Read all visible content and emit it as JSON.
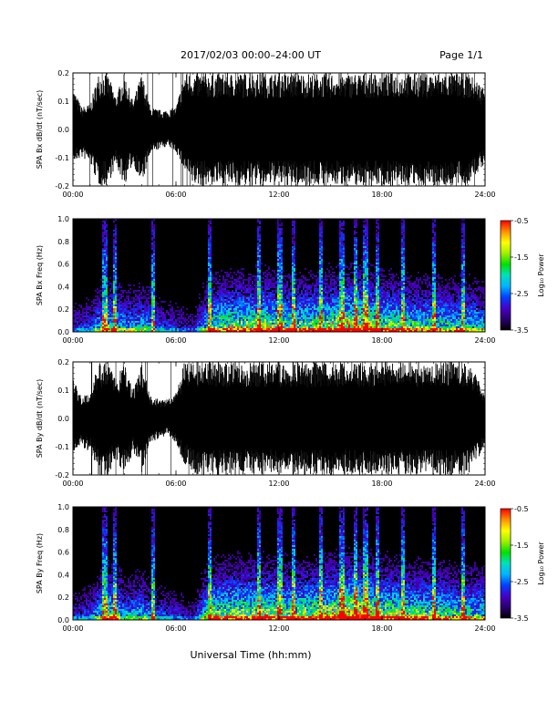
{
  "header": {
    "title": "2017/02/03  00:00–24:00 UT",
    "page": "Page 1/1"
  },
  "footer": {
    "xlabel": "Universal Time (hh:mm)"
  },
  "colors": {
    "background": "#ffffff",
    "trace": "#000000",
    "colorbar": [
      "#000000",
      "#2a0070",
      "#4a00c8",
      "#0040ff",
      "#00b4ff",
      "#00e0c0",
      "#00e000",
      "#a0f000",
      "#ffff00",
      "#ff9000",
      "#ff0000"
    ]
  },
  "chart_data": [
    {
      "type": "line",
      "ylabel": "SPA Bx dB/dt (nT/sec)",
      "xlim": [
        0,
        24
      ],
      "ylim": [
        -0.2,
        0.2
      ],
      "x_ticks": [
        "00:00",
        "06:00",
        "12:00",
        "18:00",
        "24:00"
      ],
      "y_ticks": [
        "-0.2",
        "-0.1",
        "0.0",
        "0.1",
        "0.2"
      ],
      "y_tick_values": [
        -0.2,
        -0.1,
        0.0,
        0.1,
        0.2
      ],
      "envelope": {
        "x": [
          0,
          0.5,
          1,
          1.5,
          2,
          2.5,
          3,
          3.5,
          4,
          4.5,
          5,
          5.5,
          6,
          6.5,
          7,
          7.5,
          8,
          8.5,
          9,
          10,
          11,
          12,
          13,
          14,
          15,
          16,
          17,
          18,
          19,
          20,
          21,
          22,
          23,
          24
        ],
        "upper": [
          0.15,
          0.08,
          0.09,
          0.2,
          0.2,
          0.12,
          0.2,
          0.1,
          0.2,
          0.08,
          0.07,
          0.07,
          0.08,
          0.2,
          0.2,
          0.2,
          0.2,
          0.2,
          0.2,
          0.2,
          0.2,
          0.2,
          0.2,
          0.2,
          0.2,
          0.2,
          0.2,
          0.2,
          0.2,
          0.2,
          0.2,
          0.2,
          0.2,
          0.15
        ],
        "lower": [
          -0.12,
          -0.1,
          -0.12,
          -0.2,
          -0.2,
          -0.13,
          -0.2,
          -0.12,
          -0.2,
          -0.09,
          -0.07,
          -0.06,
          -0.08,
          -0.15,
          -0.2,
          -0.2,
          -0.2,
          -0.2,
          -0.2,
          -0.2,
          -0.2,
          -0.2,
          -0.2,
          -0.2,
          -0.2,
          -0.2,
          -0.2,
          -0.2,
          -0.2,
          -0.2,
          -0.2,
          -0.2,
          -0.2,
          -0.12
        ]
      }
    },
    {
      "type": "heatmap",
      "ylabel": "SPA Bx Freq (Hz)",
      "xlim": [
        0,
        24
      ],
      "ylim": [
        0,
        1.0
      ],
      "x_ticks": [
        "00:00",
        "06:00",
        "12:00",
        "18:00",
        "24:00"
      ],
      "y_ticks": [
        "0.0",
        "0.2",
        "0.4",
        "0.6",
        "0.8",
        "1.0"
      ],
      "y_tick_values": [
        0,
        0.2,
        0.4,
        0.6,
        0.8,
        1.0
      ],
      "colorbar": {
        "label": "Log₁₀ Power",
        "range": [
          -3.5,
          -0.5
        ],
        "ticks": [
          "-0.5",
          "-1.5",
          "-2.5",
          "-3.5"
        ],
        "tick_values": [
          -0.5,
          -1.5,
          -2.5,
          -3.5
        ]
      },
      "activity": {
        "x": [
          0,
          1,
          2,
          3,
          4,
          5,
          6,
          7,
          8,
          9,
          10,
          11,
          12,
          13,
          14,
          15,
          16,
          17,
          18,
          19,
          20,
          21,
          22,
          23,
          24
        ],
        "level": [
          0.2,
          0.25,
          0.5,
          0.35,
          0.4,
          0.25,
          0.2,
          0.15,
          0.55,
          0.6,
          0.6,
          0.65,
          0.55,
          0.55,
          0.6,
          0.65,
          0.75,
          0.7,
          0.6,
          0.55,
          0.5,
          0.5,
          0.45,
          0.45,
          0.4
        ]
      },
      "bursts_hour": [
        1.8,
        2.4,
        4.6,
        7.9,
        10.8,
        12.0,
        12.8,
        14.4,
        15.6,
        16.4,
        17.0,
        17.7,
        19.2,
        21.0,
        22.7
      ]
    },
    {
      "type": "line",
      "ylabel": "SPA By dB/dt (nT/sec)",
      "xlim": [
        0,
        24
      ],
      "ylim": [
        -0.2,
        0.2
      ],
      "x_ticks": [
        "00:00",
        "06:00",
        "12:00",
        "18:00",
        "24:00"
      ],
      "y_ticks": [
        "-0.2",
        "-0.1",
        "0.0",
        "0.1",
        "0.2"
      ],
      "y_tick_values": [
        -0.2,
        -0.1,
        0.0,
        0.1,
        0.2
      ],
      "envelope": {
        "x": [
          0,
          0.5,
          1,
          1.5,
          2,
          2.5,
          3,
          3.5,
          4,
          4.5,
          5,
          5.5,
          6,
          6.5,
          7,
          7.5,
          8,
          8.5,
          9,
          10,
          11,
          12,
          13,
          14,
          15,
          16,
          17,
          18,
          19,
          20,
          21,
          22,
          23,
          24
        ],
        "upper": [
          0.15,
          0.08,
          0.09,
          0.2,
          0.2,
          0.14,
          0.2,
          0.1,
          0.2,
          0.08,
          0.07,
          0.07,
          0.09,
          0.2,
          0.2,
          0.2,
          0.2,
          0.2,
          0.2,
          0.2,
          0.2,
          0.2,
          0.2,
          0.2,
          0.2,
          0.2,
          0.2,
          0.2,
          0.2,
          0.2,
          0.2,
          0.2,
          0.2,
          0.1
        ],
        "lower": [
          -0.12,
          -0.1,
          -0.12,
          -0.2,
          -0.2,
          -0.15,
          -0.2,
          -0.12,
          -0.2,
          -0.09,
          -0.07,
          -0.06,
          -0.09,
          -0.16,
          -0.2,
          -0.2,
          -0.2,
          -0.2,
          -0.2,
          -0.2,
          -0.2,
          -0.2,
          -0.2,
          -0.2,
          -0.2,
          -0.2,
          -0.2,
          -0.2,
          -0.2,
          -0.2,
          -0.2,
          -0.2,
          -0.2,
          -0.1
        ]
      }
    },
    {
      "type": "heatmap",
      "ylabel": "SPA By Freq (Hz)",
      "xlim": [
        0,
        24
      ],
      "ylim": [
        0,
        1.0
      ],
      "x_ticks": [
        "00:00",
        "06:00",
        "12:00",
        "18:00",
        "24:00"
      ],
      "y_ticks": [
        "0.0",
        "0.2",
        "0.4",
        "0.6",
        "0.8",
        "1.0"
      ],
      "y_tick_values": [
        0,
        0.2,
        0.4,
        0.6,
        0.8,
        1.0
      ],
      "colorbar": {
        "label": "Log₁₀ Power",
        "range": [
          -3.5,
          -0.5
        ],
        "ticks": [
          "-0.5",
          "-1.5",
          "-2.5",
          "-3.5"
        ],
        "tick_values": [
          -0.5,
          -1.5,
          -2.5,
          -3.5
        ]
      },
      "activity": {
        "x": [
          0,
          1,
          2,
          3,
          4,
          5,
          6,
          7,
          8,
          9,
          10,
          11,
          12,
          13,
          14,
          15,
          16,
          17,
          18,
          19,
          20,
          21,
          22,
          23,
          24
        ],
        "level": [
          0.2,
          0.25,
          0.55,
          0.35,
          0.4,
          0.25,
          0.2,
          0.15,
          0.6,
          0.6,
          0.65,
          0.65,
          0.6,
          0.6,
          0.65,
          0.7,
          0.8,
          0.75,
          0.65,
          0.6,
          0.55,
          0.55,
          0.5,
          0.5,
          0.45
        ]
      },
      "bursts_hour": [
        1.8,
        2.4,
        4.6,
        7.9,
        10.8,
        12.0,
        12.8,
        14.4,
        15.6,
        16.4,
        17.0,
        17.7,
        19.2,
        21.0,
        22.7
      ]
    }
  ]
}
